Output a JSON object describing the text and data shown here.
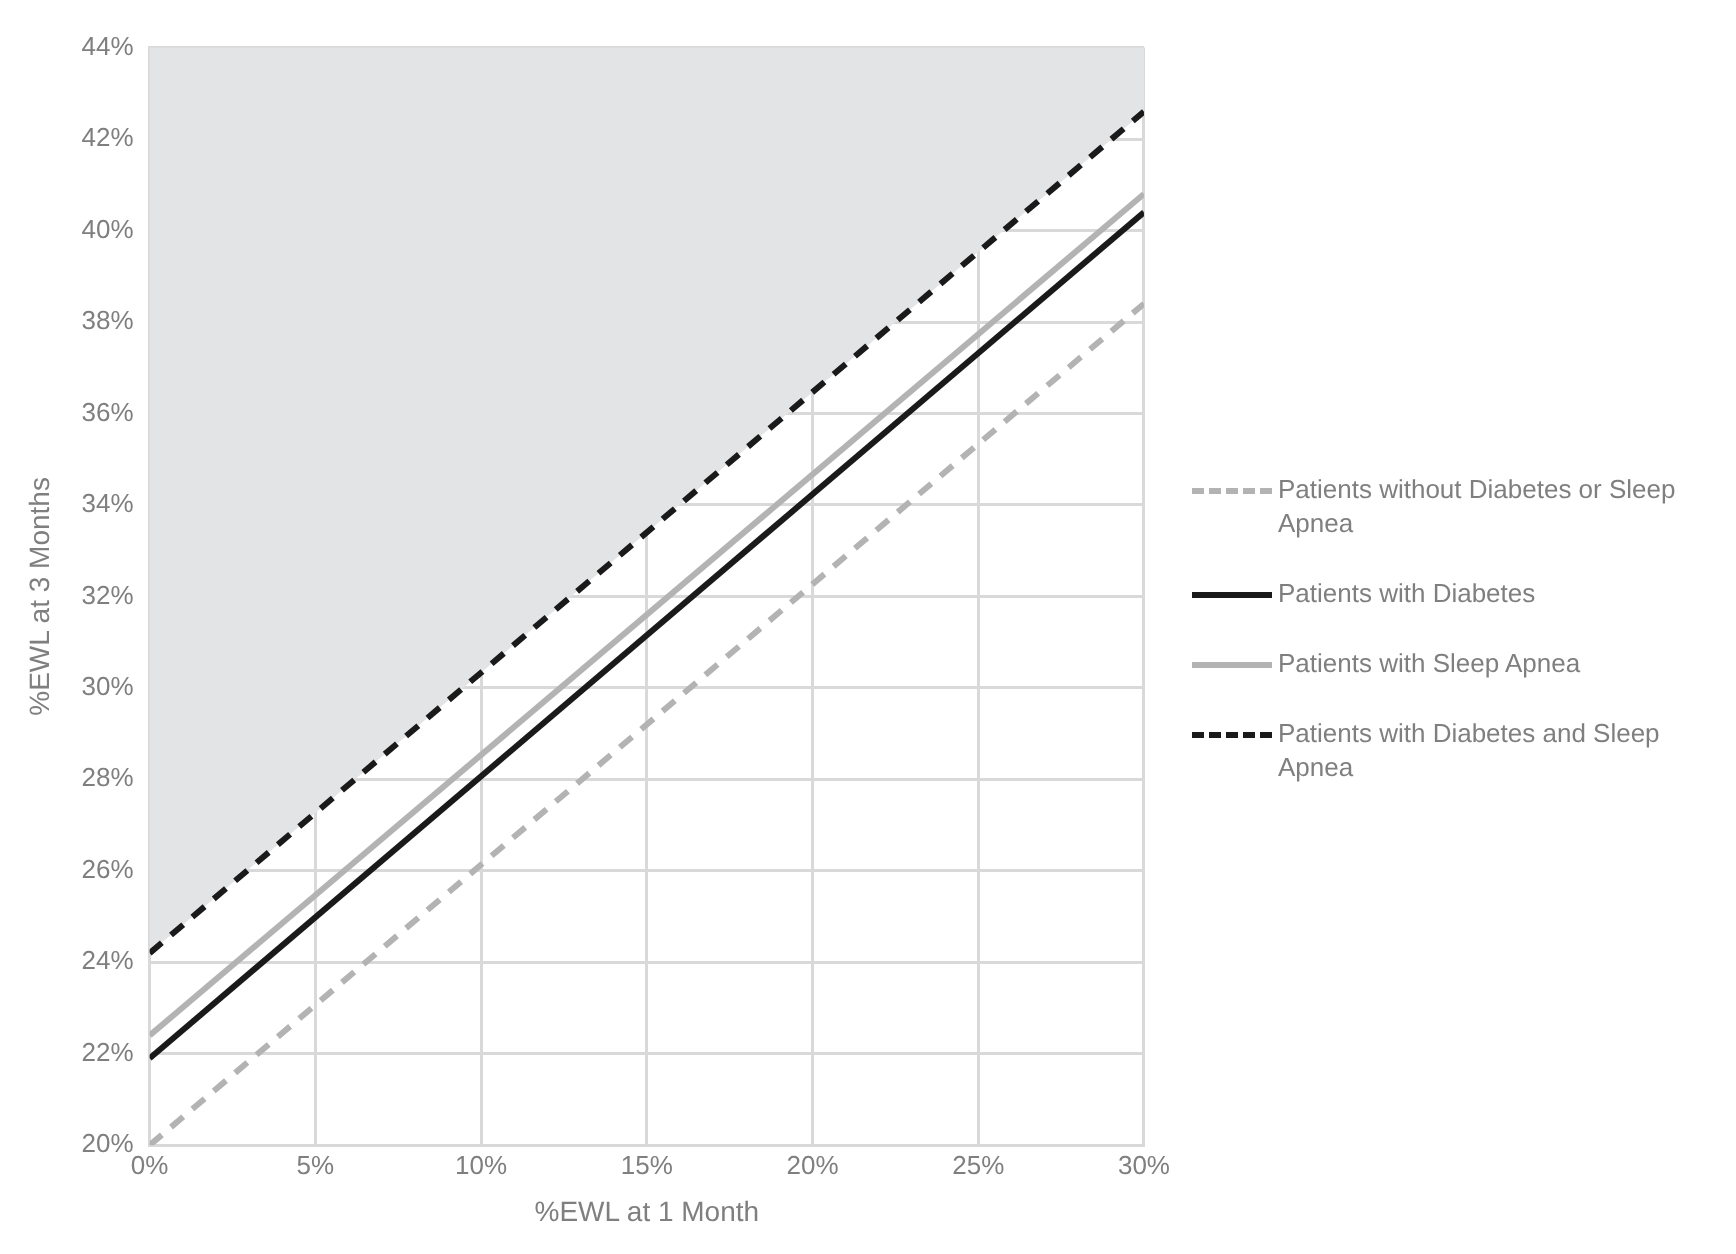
{
  "chart_data": {
    "type": "line",
    "xlabel": "%EWL at 1 Month",
    "ylabel": "%EWL at 3 Months",
    "x": [
      0,
      30
    ],
    "series": [
      {
        "name": "Patients without Diabetes or Sleep Apnea",
        "color": "#b3b3b3",
        "line_style": "dashed",
        "values": [
          20,
          38.4
        ]
      },
      {
        "name": "Patients with Diabetes",
        "color": "#1a1a1a",
        "line_style": "solid",
        "values": [
          21.9,
          40.4
        ]
      },
      {
        "name": "Patients with Sleep Apnea",
        "color": "#b3b3b3",
        "line_style": "solid",
        "values": [
          22.4,
          40.8
        ]
      },
      {
        "name": "Patients with Diabetes and Sleep Apnea",
        "color": "#1a1a1a",
        "line_style": "dashed",
        "values": [
          24.2,
          42.6
        ],
        "lower": [
          24.2,
          42.6
        ],
        "upper": [
          44,
          44
        ]
      }
    ],
    "xlim": [
      0,
      30
    ],
    "xticks": [
      {
        "value": 0,
        "label": "0%"
      },
      {
        "value": 5,
        "label": "5%"
      },
      {
        "value": 10,
        "label": "10%"
      },
      {
        "value": 15,
        "label": "15%"
      },
      {
        "value": 20,
        "label": "20%"
      },
      {
        "value": 25,
        "label": "25%"
      },
      {
        "value": 30,
        "label": "30%"
      }
    ],
    "ylim": [
      20,
      44
    ],
    "yticks": [
      {
        "value": 20,
        "label": "20%"
      },
      {
        "value": 22,
        "label": "22%"
      },
      {
        "value": 24,
        "label": "24%"
      },
      {
        "value": 26,
        "label": "26%"
      },
      {
        "value": 28,
        "label": "28%"
      },
      {
        "value": 30,
        "label": "30%"
      },
      {
        "value": 32,
        "label": "32%"
      },
      {
        "value": 34,
        "label": "34%"
      },
      {
        "value": 36,
        "label": "36%"
      },
      {
        "value": 38,
        "label": "38%"
      },
      {
        "value": 40,
        "label": "40%"
      },
      {
        "value": 42,
        "label": "42%"
      },
      {
        "value": 44,
        "label": "44%"
      }
    ],
    "grid": true,
    "legend": "right",
    "marker": "none"
  }
}
